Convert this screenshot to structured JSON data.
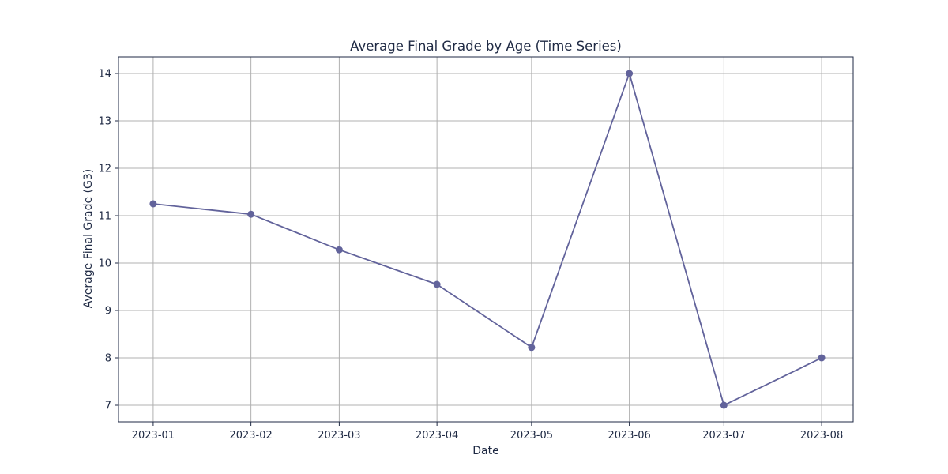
{
  "chart_data": {
    "type": "line",
    "title": "Average Final Grade by Age (Time Series)",
    "xlabel": "Date",
    "ylabel": "Average Final Grade (G3)",
    "x": [
      "2023-01",
      "2023-02",
      "2023-03",
      "2023-04",
      "2023-05",
      "2023-06",
      "2023-07",
      "2023-08"
    ],
    "x_tick_labels": [
      "2023-01",
      "2023-02",
      "2023-03",
      "2023-04",
      "2023-05",
      "2023-06",
      "2023-07",
      "2023-08"
    ],
    "series": [
      {
        "values": [
          11.25,
          11.03,
          10.28,
          9.55,
          8.22,
          14.0,
          7.0,
          8.0
        ],
        "color": "#62639b",
        "marker": "circle"
      }
    ],
    "y_ticks": [
      7,
      8,
      9,
      10,
      11,
      12,
      13,
      14
    ],
    "ylim": [
      6.65,
      14.35
    ],
    "xlim": [
      "2022-12-21",
      "2023-08-11"
    ],
    "grid": true,
    "colors": {
      "grid": "#b0b0b0",
      "axes": "#1f2a44",
      "text": "#1f2a44",
      "line": "#62639b"
    }
  }
}
